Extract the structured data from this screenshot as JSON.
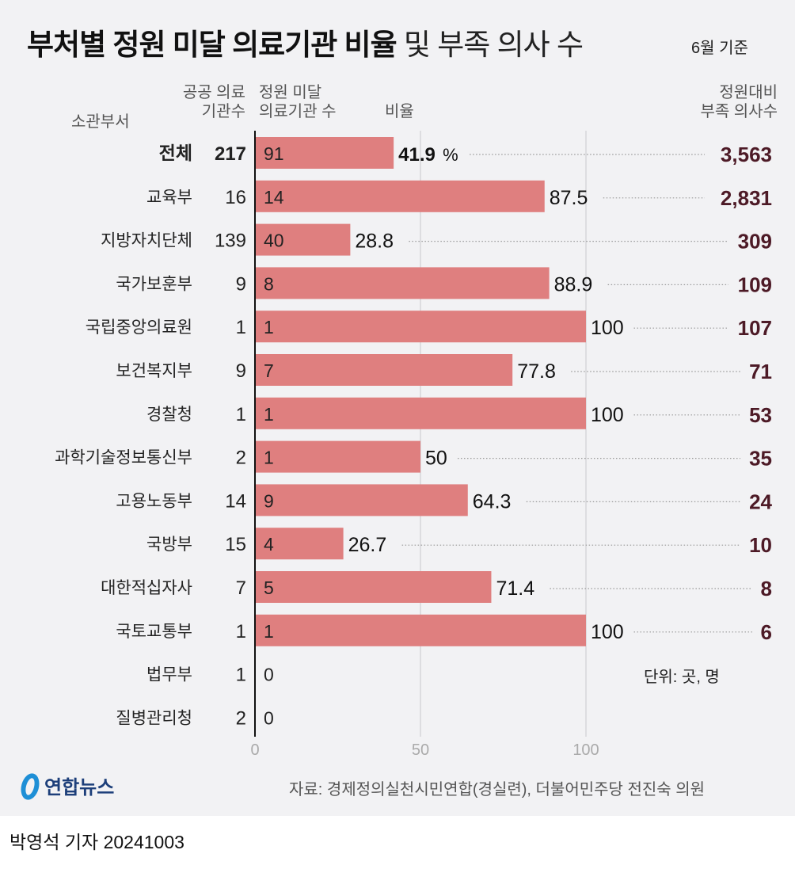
{
  "title": "부처별 정원 미달 의료기관 비율",
  "subtitle": "및 부족 의사 수",
  "basis": "6월 기준",
  "unit": "단위: 곳, 명",
  "source": "자료: 경제정의실천시민연합(경실련), 더불어민주당 전진숙 의원",
  "byline": "박영석 기자 20241003",
  "logo_text": "연합뉴스",
  "colors": {
    "bar": "#df7f7f",
    "value": "#4d1a26",
    "background": "#f2f2f4"
  },
  "chart_data": {
    "type": "bar",
    "orientation": "horizontal",
    "headers": {
      "dept": "소관부서",
      "public_line1": "공공 의료",
      "public_line2": "기관수",
      "under_line1": "정원 미달",
      "under_line2": "의료기관 수",
      "ratio": "비율",
      "short_line1": "정원대비",
      "short_line2": "부족 의사수"
    },
    "xlim": [
      0,
      100
    ],
    "xticks": [
      0,
      50,
      100
    ],
    "total_suffix": "%",
    "rows": [
      {
        "dept": "전체",
        "public": "217",
        "under": "91",
        "ratio": 41.9,
        "ratio_label": "41.9",
        "shortage": "3,563",
        "total": true
      },
      {
        "dept": "교육부",
        "public": "16",
        "under": "14",
        "ratio": 87.5,
        "ratio_label": "87.5",
        "shortage": "2,831"
      },
      {
        "dept": "지방자치단체",
        "public": "139",
        "under": "40",
        "ratio": 28.8,
        "ratio_label": "28.8",
        "shortage": "309"
      },
      {
        "dept": "국가보훈부",
        "public": "9",
        "under": "8",
        "ratio": 88.9,
        "ratio_label": "88.9",
        "shortage": "109"
      },
      {
        "dept": "국립중앙의료원",
        "public": "1",
        "under": "1",
        "ratio": 100,
        "ratio_label": "100",
        "shortage": "107"
      },
      {
        "dept": "보건복지부",
        "public": "9",
        "under": "7",
        "ratio": 77.8,
        "ratio_label": "77.8",
        "shortage": "71"
      },
      {
        "dept": "경찰청",
        "public": "1",
        "under": "1",
        "ratio": 100,
        "ratio_label": "100",
        "shortage": "53"
      },
      {
        "dept": "과학기술정보통신부",
        "public": "2",
        "under": "1",
        "ratio": 50,
        "ratio_label": "50",
        "shortage": "35"
      },
      {
        "dept": "고용노동부",
        "public": "14",
        "under": "9",
        "ratio": 64.3,
        "ratio_label": "64.3",
        "shortage": "24"
      },
      {
        "dept": "국방부",
        "public": "15",
        "under": "4",
        "ratio": 26.7,
        "ratio_label": "26.7",
        "shortage": "10"
      },
      {
        "dept": "대한적십자사",
        "public": "7",
        "under": "5",
        "ratio": 71.4,
        "ratio_label": "71.4",
        "shortage": "8"
      },
      {
        "dept": "국토교통부",
        "public": "1",
        "under": "1",
        "ratio": 100,
        "ratio_label": "100",
        "shortage": "6"
      },
      {
        "dept": "법무부",
        "public": "1",
        "under": "0",
        "ratio": 0,
        "ratio_label": "",
        "shortage": ""
      },
      {
        "dept": "질병관리청",
        "public": "2",
        "under": "0",
        "ratio": 0,
        "ratio_label": "",
        "shortage": ""
      }
    ]
  }
}
